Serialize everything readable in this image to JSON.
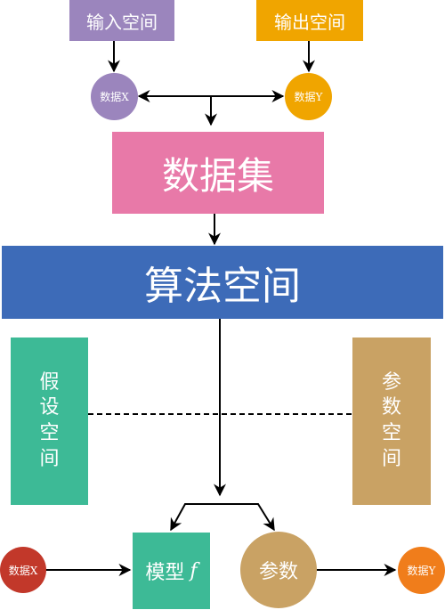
{
  "top": {
    "input_space": "输入空间",
    "output_space": "输出空间",
    "data_x": "数据X",
    "data_y": "数据Y"
  },
  "dataset": "数据集",
  "algorithm_space": "算法空间",
  "hypothesis_space": [
    "假",
    "设",
    "空",
    "间"
  ],
  "parameter_space": [
    "参",
    "数",
    "空",
    "间"
  ],
  "bottom": {
    "data_x": "数据X",
    "model_label": "模型",
    "model_symbol": "f",
    "params": "参数",
    "data_y": "数据Y"
  },
  "colors": {
    "input_space": "#9b85bd",
    "output_space": "#f0a500",
    "data_x_top": "#9b85bd",
    "data_y_top": "#f0a500",
    "dataset": "#e879a8",
    "algorithm_space": "#3d6bb8",
    "hypothesis_space": "#3dba96",
    "parameter_space": "#c9a264",
    "data_x_bottom": "#c2382a",
    "model": "#3dba96",
    "params": "#c9a264",
    "data_y_bottom": "#f07d1b"
  }
}
